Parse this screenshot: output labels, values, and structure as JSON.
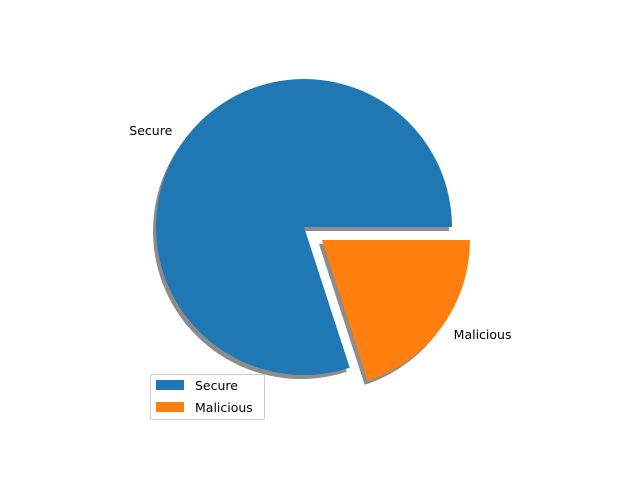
{
  "chart_data": {
    "type": "pie",
    "slices": [
      {
        "label": "Secure",
        "value": 80,
        "color": "#1f77b4",
        "exploded": false
      },
      {
        "label": "Malicious",
        "value": 20,
        "color": "#ff7f0e",
        "exploded": true
      }
    ],
    "start_angle_deg": 0,
    "direction": "counterclockwise",
    "shadow": true,
    "legend": {
      "placement": "lower-left",
      "entries": [
        "Secure",
        "Malicious"
      ]
    }
  }
}
